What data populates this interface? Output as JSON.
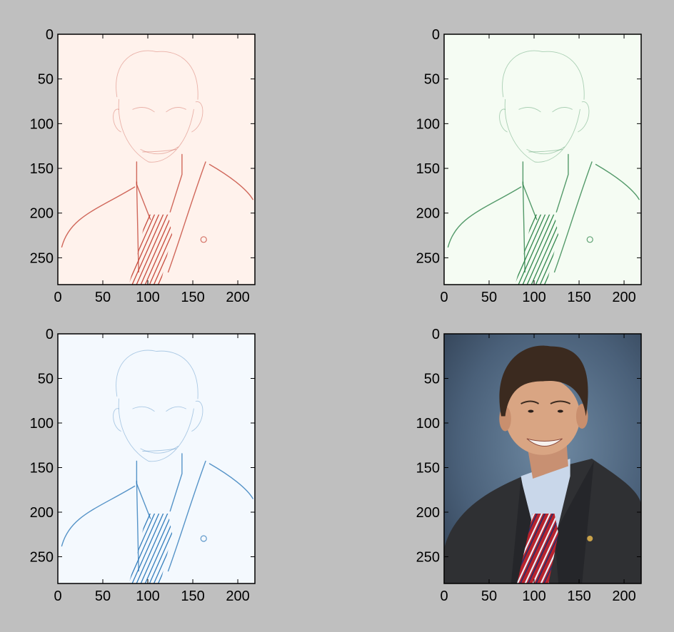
{
  "figure": {
    "background": "#bfbfbf"
  },
  "chart_data": [
    {
      "type": "image",
      "panel": "top-left",
      "colormap": "Reds",
      "content": "edge-filtered portrait",
      "xlim": [
        0,
        219
      ],
      "ylim": [
        280,
        0
      ],
      "xticks": [
        0,
        50,
        100,
        150,
        200
      ],
      "yticks": [
        0,
        50,
        100,
        150,
        200,
        250
      ],
      "background_color": "#fff2ec",
      "stroke_color": "#c0392b"
    },
    {
      "type": "image",
      "panel": "top-right",
      "colormap": "Greens",
      "content": "edge-filtered portrait",
      "xlim": [
        0,
        219
      ],
      "ylim": [
        280,
        0
      ],
      "xticks": [
        0,
        50,
        100,
        150,
        200
      ],
      "yticks": [
        0,
        50,
        100,
        150,
        200,
        250
      ],
      "background_color": "#f5fcf3",
      "stroke_color": "#1e7a3c"
    },
    {
      "type": "image",
      "panel": "bottom-left",
      "colormap": "Blues",
      "content": "edge-filtered portrait",
      "xlim": [
        0,
        219
      ],
      "ylim": [
        280,
        0
      ],
      "xticks": [
        0,
        50,
        100,
        150,
        200
      ],
      "yticks": [
        0,
        50,
        100,
        150,
        200,
        250
      ],
      "background_color": "#f4f9fe",
      "stroke_color": "#2171b5"
    },
    {
      "type": "image",
      "panel": "bottom-right",
      "colormap": "RGB",
      "content": "original color portrait",
      "xlim": [
        0,
        219
      ],
      "ylim": [
        280,
        0
      ],
      "xticks": [
        0,
        50,
        100,
        150,
        200
      ],
      "yticks": [
        0,
        50,
        100,
        150,
        200,
        250
      ],
      "background_color": "#3c5068",
      "stroke_color": "#2b2b2b"
    }
  ]
}
